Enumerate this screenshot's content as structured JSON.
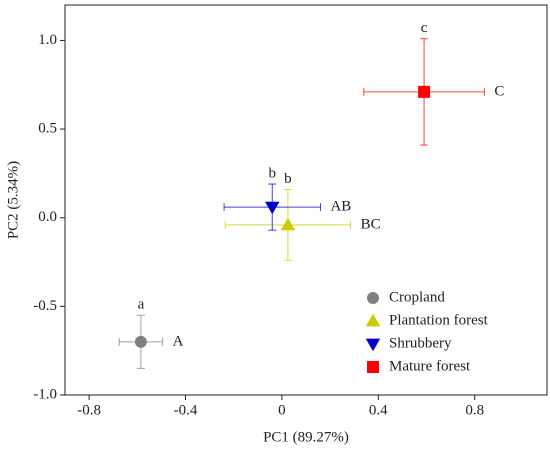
{
  "chart_data": {
    "type": "scatter",
    "xlabel": "PC1 (89.27%)",
    "ylabel": "PC2 (5.34%)",
    "xlim": [
      -0.9,
      1.1
    ],
    "ylim": [
      -1.0,
      1.2
    ],
    "xticks": [
      -0.8,
      -0.4,
      0,
      0.4,
      0.8
    ],
    "yticks": [
      {
        "value": 1.0,
        "label": "1.0"
      },
      0.5,
      {
        "value": 0.0,
        "label": "0.0"
      },
      -0.5,
      {
        "value": -1.0,
        "label": "-1.0"
      }
    ],
    "legend": "lower right",
    "series": [
      {
        "name": "Cropland",
        "color": "#808080",
        "marker": "circle",
        "x": [
          -0.585
        ],
        "values": [
          -0.7
        ],
        "xerr": [
          0.09
        ],
        "yerr": [
          0.15
        ],
        "group_labels": [
          "a"
        ],
        "side_labels": [
          "A"
        ]
      },
      {
        "name": "Plantation forest",
        "color": "#cccc00",
        "marker": "triangle-up",
        "x": [
          0.025
        ],
        "values": [
          -0.04
        ],
        "xerr": [
          0.26
        ],
        "yerr": [
          0.2
        ],
        "group_labels": [
          "b"
        ],
        "side_labels": [
          "BC"
        ]
      },
      {
        "name": "Shrubbery",
        "color": "#0000cc",
        "marker": "triangle-down",
        "x": [
          -0.04
        ],
        "values": [
          0.06
        ],
        "xerr": [
          0.2
        ],
        "yerr": [
          0.13
        ],
        "group_labels": [
          "b"
        ],
        "side_labels": [
          "AB"
        ]
      },
      {
        "name": "Mature forest",
        "color": "#ff0000",
        "marker": "square",
        "x": [
          0.59
        ],
        "values": [
          0.71
        ],
        "xerr": [
          0.25
        ],
        "yerr": [
          0.3
        ],
        "group_labels": [
          "c"
        ],
        "side_labels": [
          "C"
        ]
      }
    ]
  }
}
